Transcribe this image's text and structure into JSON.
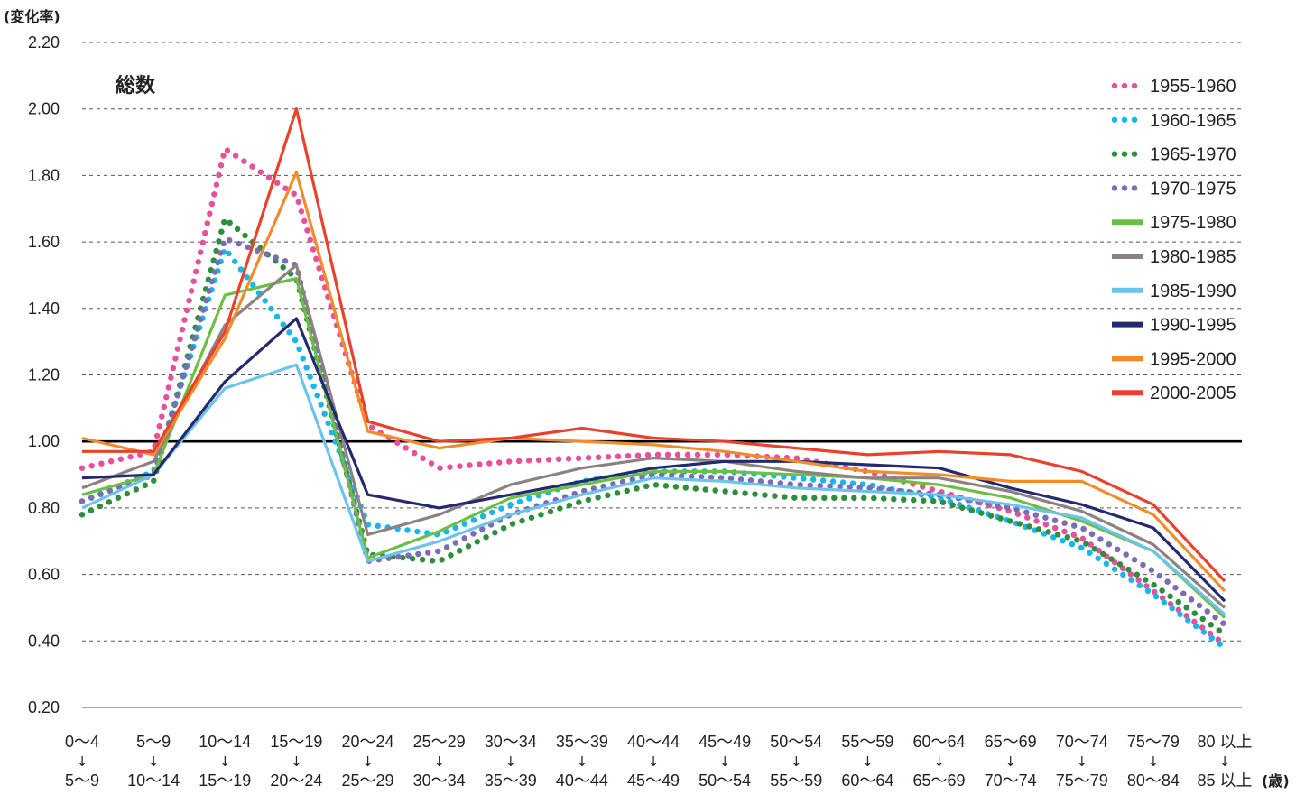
{
  "chart_data": {
    "type": "line",
    "title": "総数",
    "ylabel": "(変化率)",
    "xunit": "(歳)",
    "ylim": [
      0.2,
      2.2
    ],
    "yticks": [
      "0.20",
      "0.40",
      "0.60",
      "0.80",
      "1.00",
      "1.20",
      "1.40",
      "1.60",
      "1.80",
      "2.00",
      "2.20"
    ],
    "reference_line": 1.0,
    "grid": "horizontal-dashed",
    "legend_position": "right",
    "arrow_glyph": "↓",
    "categories_top": [
      "0～4",
      "5～9",
      "10～14",
      "15～19",
      "20～24",
      "25～29",
      "30～34",
      "35～39",
      "40～44",
      "45～49",
      "50～54",
      "55～59",
      "60～64",
      "65～69",
      "70～74",
      "75～79",
      "80 以上"
    ],
    "categories_bottom": [
      "5～9",
      "10～14",
      "15～19",
      "20～24",
      "25～29",
      "30～34",
      "35～39",
      "40～44",
      "45～49",
      "50～54",
      "55～59",
      "60～64",
      "65～69",
      "70～74",
      "75～79",
      "80～84",
      "85 以上"
    ],
    "series": [
      {
        "name": "1955-1960",
        "color": "#e8519a",
        "style": "dotted",
        "values": [
          0.92,
          0.97,
          1.88,
          1.74,
          1.05,
          0.92,
          0.94,
          0.95,
          0.96,
          0.96,
          0.95,
          0.91,
          0.85,
          0.79,
          0.71,
          0.55,
          0.39
        ]
      },
      {
        "name": "1960-1965",
        "color": "#16b7ea",
        "style": "dotted",
        "values": [
          0.82,
          0.91,
          1.58,
          1.3,
          0.75,
          0.72,
          0.81,
          0.88,
          0.91,
          0.91,
          0.89,
          0.87,
          0.83,
          0.76,
          0.68,
          0.54,
          0.38
        ]
      },
      {
        "name": "1965-1970",
        "color": "#2c8f3b",
        "style": "dotted",
        "values": [
          0.78,
          0.88,
          1.67,
          1.49,
          0.66,
          0.64,
          0.75,
          0.82,
          0.87,
          0.85,
          0.83,
          0.83,
          0.82,
          0.76,
          0.7,
          0.57,
          0.42
        ]
      },
      {
        "name": "1970-1975",
        "color": "#7b6cb3",
        "style": "dotted",
        "values": [
          0.82,
          0.9,
          1.61,
          1.53,
          0.64,
          0.67,
          0.78,
          0.85,
          0.9,
          0.89,
          0.87,
          0.86,
          0.84,
          0.8,
          0.74,
          0.61,
          0.45
        ]
      },
      {
        "name": "1975-1980",
        "color": "#6cbe45",
        "style": "solid",
        "values": [
          0.84,
          0.9,
          1.44,
          1.49,
          0.65,
          0.73,
          0.83,
          0.87,
          0.91,
          0.91,
          0.9,
          0.89,
          0.87,
          0.83,
          0.76,
          0.67,
          0.47
        ]
      },
      {
        "name": "1980-1985",
        "color": "#8c8282",
        "style": "solid",
        "values": [
          0.86,
          0.94,
          1.35,
          1.53,
          0.72,
          0.78,
          0.87,
          0.92,
          0.95,
          0.94,
          0.91,
          0.89,
          0.89,
          0.85,
          0.79,
          0.69,
          0.5
        ]
      },
      {
        "name": "1985-1990",
        "color": "#6cc4ed",
        "style": "solid",
        "values": [
          0.8,
          0.9,
          1.16,
          1.23,
          0.64,
          0.7,
          0.78,
          0.84,
          0.89,
          0.88,
          0.86,
          0.85,
          0.84,
          0.81,
          0.77,
          0.67,
          0.48
        ]
      },
      {
        "name": "1990-1995",
        "color": "#252a6e",
        "style": "solid",
        "values": [
          0.89,
          0.9,
          1.18,
          1.37,
          0.84,
          0.8,
          0.84,
          0.88,
          0.92,
          0.94,
          0.94,
          0.93,
          0.92,
          0.86,
          0.81,
          0.74,
          0.52
        ]
      },
      {
        "name": "1995-2000",
        "color": "#f28c28",
        "style": "solid",
        "values": [
          1.01,
          0.96,
          1.31,
          1.81,
          1.03,
          0.98,
          1.01,
          1.0,
          0.99,
          0.97,
          0.94,
          0.91,
          0.9,
          0.88,
          0.88,
          0.78,
          0.55
        ]
      },
      {
        "name": "2000-2005",
        "color": "#e8412c",
        "style": "solid",
        "values": [
          0.97,
          0.97,
          1.33,
          2.0,
          1.06,
          1.0,
          1.01,
          1.04,
          1.01,
          1.0,
          0.98,
          0.96,
          0.97,
          0.96,
          0.91,
          0.81,
          0.58
        ]
      }
    ]
  }
}
